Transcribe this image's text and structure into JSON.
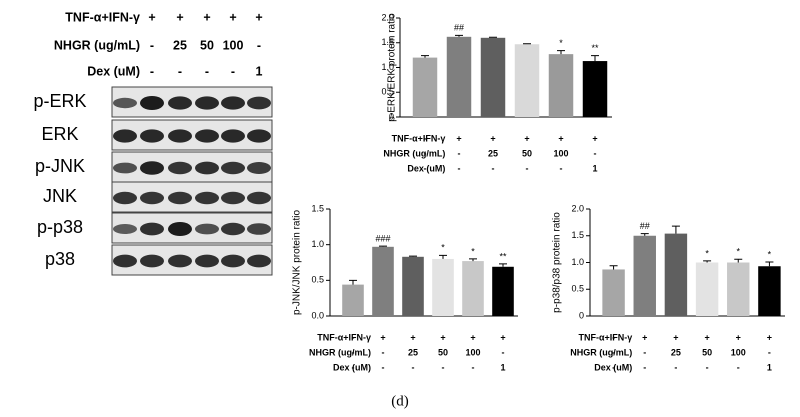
{
  "blot": {
    "conditions": [
      {
        "label": "TNF-α+IFN-γ",
        "values": [
          "+",
          "+",
          "+",
          "+",
          "+"
        ]
      },
      {
        "label": "NHGR (ug/mL)",
        "values": [
          "-",
          "25",
          "50",
          "100",
          "-"
        ]
      },
      {
        "label": "Dex (uM)",
        "values": [
          "-",
          "-",
          "-",
          "-",
          "1"
        ]
      }
    ],
    "rows": [
      "p-ERK",
      "ERK",
      "p-JNK",
      "JNK",
      "p-p38",
      "p38"
    ]
  },
  "caption": "(d)",
  "chart_data": [
    {
      "type": "bar",
      "y_label": "p-ERK/ERK protein ratio",
      "categories": [
        null,
        null,
        null,
        null,
        null,
        null
      ],
      "values": [
        1.2,
        1.62,
        1.6,
        1.47,
        1.27,
        1.13
      ],
      "errors": [
        0.04,
        0.03,
        0.01,
        0.01,
        0.07,
        0.11
      ],
      "annotations": [
        null,
        "##",
        null,
        null,
        "*",
        "**"
      ],
      "colors": [
        "#a6a6a6",
        "#7f7f7f",
        "#5f5f5f",
        "#d9d9d9",
        "#9a9a9a",
        "#000000"
      ],
      "ylim": [
        0,
        2
      ],
      "yticks": [
        0,
        {
          "value": 0.5,
          "label": "0.5"
        },
        {
          "value": 1,
          "label": "1.0"
        },
        {
          "value": 1.5,
          "label": "1.5"
        },
        {
          "value": 2,
          "label": "2.0"
        }
      ],
      "conditions": [
        {
          "label": "TNF-α+IFN-γ",
          "values": [
            "-",
            "+",
            "+",
            "+",
            "+",
            "+"
          ]
        },
        {
          "label": "NHGR (ug/mL)",
          "values": [
            "-",
            "-",
            "25",
            "50",
            "100",
            "-"
          ]
        },
        {
          "label": "Dex (uM)",
          "values": [
            "-",
            "-",
            "-",
            "-",
            "-",
            "1"
          ]
        }
      ]
    },
    {
      "type": "bar",
      "y_label": "p-JNK/JNK protein ratio",
      "categories": [
        null,
        null,
        null,
        null,
        null,
        null
      ],
      "values": [
        0.44,
        0.97,
        0.83,
        0.8,
        0.77,
        0.69
      ],
      "errors": [
        0.06,
        0.01,
        0.01,
        0.05,
        0.03,
        0.04
      ],
      "annotations": [
        null,
        "###",
        null,
        "*",
        "*",
        "**"
      ],
      "colors": [
        "#a6a6a6",
        "#7f7f7f",
        "#5f5f5f",
        "#e3e3e3",
        "#c8c8c8",
        "#000000"
      ],
      "ylim": [
        0,
        1.5
      ],
      "yticks": [
        {
          "value": 0,
          "label": "0.0"
        },
        {
          "value": 0.5,
          "label": "0.5"
        },
        {
          "value": 1,
          "label": "1.0"
        },
        {
          "value": 1.5,
          "label": "1.5"
        }
      ],
      "conditions": [
        {
          "label": "TNF-α+IFN-γ",
          "values": [
            "-",
            "+",
            "+",
            "+",
            "+",
            "+"
          ]
        },
        {
          "label": "NHGR (ug/mL)",
          "values": [
            "-",
            "-",
            "25",
            "50",
            "100",
            "-"
          ]
        },
        {
          "label": "Dex (uM)",
          "values": [
            "-",
            "-",
            "-",
            "-",
            "-",
            "1"
          ]
        }
      ]
    },
    {
      "type": "bar",
      "y_label": "p-p38/p38 protein ratio",
      "categories": [
        null,
        null,
        null,
        null,
        null,
        null
      ],
      "values": [
        0.87,
        1.5,
        1.54,
        1.0,
        1.0,
        0.93
      ],
      "errors": [
        0.07,
        0.04,
        0.14,
        0.03,
        0.06,
        0.08
      ],
      "annotations": [
        null,
        "##",
        null,
        "*",
        "*",
        "*"
      ],
      "colors": [
        "#a6a6a6",
        "#7f7f7f",
        "#5f5f5f",
        "#e3e3e3",
        "#c8c8c8",
        "#000000"
      ],
      "ylim": [
        0,
        2
      ],
      "yticks": [
        0,
        {
          "value": 0.5,
          "label": "0.5"
        },
        {
          "value": 1,
          "label": "1.0"
        },
        {
          "value": 1.5,
          "label": "1.5"
        },
        {
          "value": 2,
          "label": "2.0"
        }
      ],
      "conditions": [
        {
          "label": "TNF-α+IFN-γ",
          "values": [
            "-",
            "+",
            "+",
            "+",
            "+",
            "+"
          ]
        },
        {
          "label": "NHGR (ug/mL)",
          "values": [
            "-",
            "-",
            "25",
            "50",
            "100",
            "-"
          ]
        },
        {
          "label": "Dex (uM)",
          "values": [
            "-",
            "-",
            "-",
            "-",
            "-",
            "1"
          ]
        }
      ]
    }
  ]
}
